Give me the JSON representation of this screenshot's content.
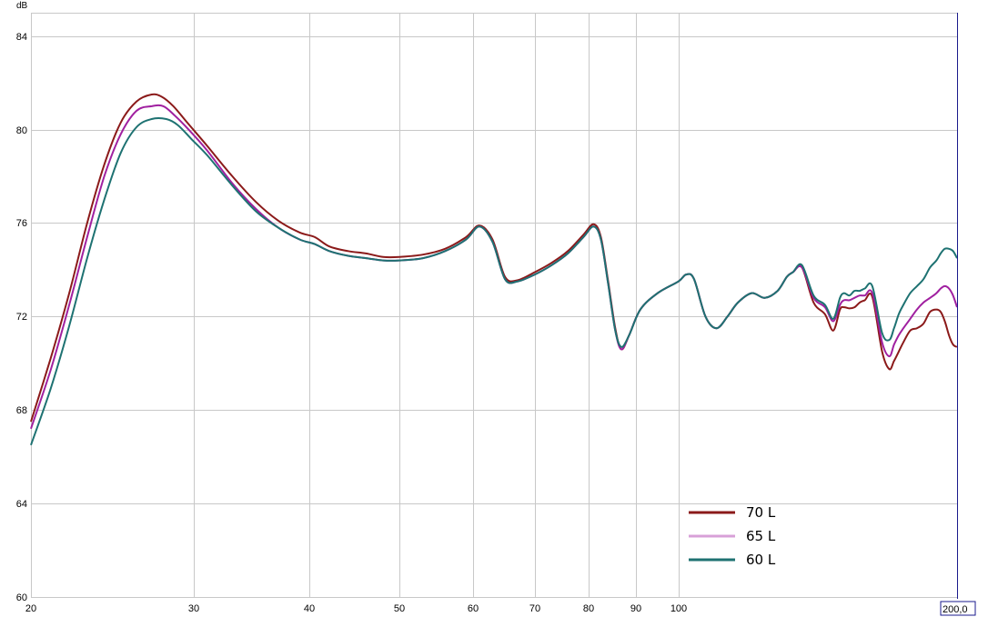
{
  "chart_data": {
    "type": "line",
    "title": "",
    "xlabel": "",
    "ylabel": "dB",
    "x_scale": "log",
    "xlim": [
      20,
      200
    ],
    "ylim": [
      60,
      85
    ],
    "grid": true,
    "x_ticks": [
      20,
      30,
      40,
      50,
      60,
      70,
      80,
      90,
      100
    ],
    "x_tick_labels": [
      "20",
      "30",
      "40",
      "50",
      "60",
      "70",
      "80",
      "90",
      "100"
    ],
    "y_ticks": [
      60,
      64,
      68,
      72,
      76,
      80,
      84
    ],
    "y_tick_labels": [
      "60",
      "64",
      "68",
      "72",
      "76",
      "80",
      "84"
    ],
    "cursor_value": "200,0",
    "legend_position": "bottom-right",
    "series": [
      {
        "name": "70 L",
        "color": "#8b1a1a",
        "x": [
          20,
          21,
          22,
          23,
          24,
          25,
          26,
          27,
          27.7,
          28.5,
          29.5,
          31,
          33,
          35,
          37,
          39,
          40.5,
          42,
          44,
          46,
          48,
          50,
          53,
          56,
          59,
          61,
          63,
          65,
          67,
          70,
          73,
          76,
          79,
          81,
          82.5,
          84,
          85.5,
          86.8,
          88.5,
          91,
          95,
          100,
          102,
          104,
          107,
          110,
          113,
          116,
          120,
          124,
          128,
          131,
          133,
          136,
          140,
          144,
          147,
          149.5,
          151,
          153,
          155,
          157,
          159,
          162,
          166,
          169,
          171,
          173,
          175,
          178,
          181,
          184,
          187,
          190,
          192,
          194,
          196,
          198,
          200
        ],
        "y": [
          67.5,
          70.2,
          73.0,
          76.0,
          78.5,
          80.3,
          81.2,
          81.5,
          81.4,
          81.0,
          80.3,
          79.3,
          78.0,
          76.9,
          76.1,
          75.6,
          75.4,
          75.0,
          74.8,
          74.7,
          74.55,
          74.55,
          74.65,
          74.9,
          75.4,
          75.9,
          75.3,
          73.7,
          73.55,
          73.9,
          74.3,
          74.8,
          75.5,
          75.95,
          75.4,
          73.5,
          71.5,
          70.6,
          71.2,
          72.3,
          73.0,
          73.5,
          73.8,
          73.6,
          72.0,
          71.5,
          72.0,
          72.6,
          73.0,
          72.8,
          73.1,
          73.7,
          73.9,
          74.1,
          72.6,
          72.1,
          71.4,
          72.3,
          72.4,
          72.35,
          72.4,
          72.6,
          72.7,
          72.85,
          70.5,
          69.75,
          70.1,
          70.5,
          70.9,
          71.4,
          71.5,
          71.7,
          72.2,
          72.3,
          72.2,
          71.8,
          71.2,
          70.8,
          70.7
        ]
      },
      {
        "name": "65 L",
        "color": "#a020a0",
        "legend_color": "#d8a0d8",
        "x": [
          20,
          21,
          22,
          23,
          24,
          25,
          26,
          27,
          27.8,
          28.6,
          29.6,
          31,
          33,
          35,
          37,
          39,
          40.5,
          42,
          44,
          46,
          48,
          50,
          53,
          56,
          59,
          61,
          63,
          65,
          67,
          70,
          73,
          76,
          79,
          81,
          82.5,
          84,
          85.5,
          86.8,
          88.5,
          91,
          95,
          100,
          102,
          104,
          107,
          110,
          113,
          116,
          120,
          124,
          128,
          131,
          133,
          136,
          140,
          144,
          147,
          149.5,
          151,
          153,
          155,
          157,
          159,
          162,
          166,
          169,
          171,
          173,
          175,
          178,
          181,
          184,
          187,
          190,
          192,
          194,
          196,
          198,
          200
        ],
        "y": [
          67.2,
          69.7,
          72.5,
          75.4,
          78.0,
          79.8,
          80.8,
          81.0,
          81.0,
          80.6,
          80.0,
          79.1,
          77.7,
          76.6,
          75.8,
          75.3,
          75.1,
          74.8,
          74.6,
          74.5,
          74.4,
          74.4,
          74.5,
          74.8,
          75.3,
          75.85,
          75.2,
          73.6,
          73.5,
          73.8,
          74.2,
          74.7,
          75.4,
          75.85,
          75.3,
          73.4,
          71.4,
          70.6,
          71.2,
          72.3,
          73.0,
          73.5,
          73.8,
          73.6,
          72.0,
          71.5,
          72.0,
          72.6,
          73.0,
          72.8,
          73.1,
          73.7,
          73.9,
          74.1,
          72.8,
          72.4,
          71.8,
          72.5,
          72.7,
          72.7,
          72.8,
          72.9,
          72.9,
          73.0,
          70.9,
          70.3,
          70.8,
          71.2,
          71.5,
          71.9,
          72.3,
          72.6,
          72.8,
          73.0,
          73.2,
          73.3,
          73.2,
          72.9,
          72.4
        ]
      },
      {
        "name": "60 L",
        "color": "#1e7272",
        "x": [
          20,
          21,
          22,
          23,
          24,
          25,
          26,
          27,
          28,
          28.8,
          29.8,
          31,
          33,
          35,
          37,
          39,
          40.5,
          42,
          44,
          46,
          48,
          50,
          53,
          56,
          59,
          61,
          63,
          65,
          67,
          70,
          73,
          76,
          79,
          81,
          82.5,
          84,
          85.5,
          86.8,
          88.5,
          91,
          95,
          100,
          102,
          104,
          107,
          110,
          113,
          116,
          120,
          124,
          128,
          131,
          133,
          136,
          140,
          144,
          147,
          149.5,
          151,
          153,
          155,
          157,
          159,
          162,
          166,
          169,
          171,
          173,
          175,
          178,
          181,
          184,
          187,
          190,
          192,
          194,
          196,
          198,
          200
        ],
        "y": [
          66.5,
          68.9,
          71.6,
          74.5,
          77.0,
          79.0,
          80.1,
          80.45,
          80.45,
          80.2,
          79.6,
          78.9,
          77.6,
          76.5,
          75.8,
          75.3,
          75.1,
          74.8,
          74.6,
          74.5,
          74.4,
          74.4,
          74.5,
          74.8,
          75.3,
          75.85,
          75.2,
          73.6,
          73.5,
          73.8,
          74.2,
          74.7,
          75.4,
          75.85,
          75.3,
          73.4,
          71.4,
          70.7,
          71.2,
          72.3,
          73.0,
          73.5,
          73.8,
          73.6,
          72.0,
          71.5,
          72.0,
          72.6,
          73.0,
          72.8,
          73.1,
          73.7,
          73.9,
          74.2,
          72.9,
          72.5,
          71.9,
          72.8,
          73.0,
          72.9,
          73.1,
          73.1,
          73.2,
          73.3,
          71.3,
          71.0,
          71.5,
          72.1,
          72.5,
          73.0,
          73.3,
          73.6,
          74.1,
          74.4,
          74.7,
          74.9,
          74.9,
          74.8,
          74.5
        ]
      }
    ]
  }
}
